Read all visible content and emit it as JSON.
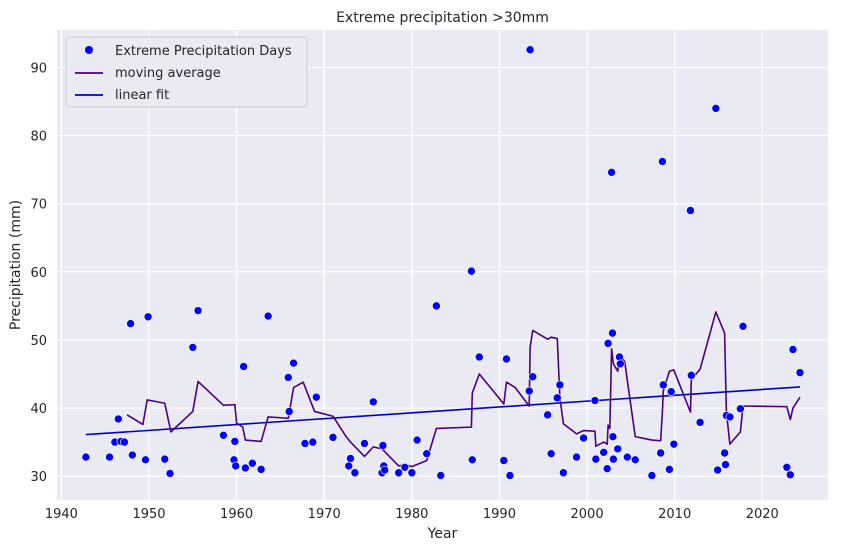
{
  "chart_data": {
    "type": "scatter",
    "title": "Extreme precipitation >30mm",
    "xlabel": "Year",
    "ylabel": "Precipitation (mm)",
    "xlim": [
      1939.5,
      2027.5
    ],
    "ylim": [
      26.5,
      95.5
    ],
    "xticks": [
      1940,
      1950,
      1960,
      1970,
      1980,
      1990,
      2000,
      2010,
      2020
    ],
    "yticks": [
      30,
      40,
      50,
      60,
      70,
      80,
      90
    ],
    "grid": true,
    "legend_position": "top-left",
    "colors": {
      "background": "#eaeaf2",
      "grid": "#ffffff",
      "points": "#0000ff",
      "moving_average": "#4b0082",
      "linear_fit": "#0000cd"
    },
    "legend": [
      "Extreme Precipitation Days",
      "moving average",
      "linear fit"
    ],
    "series": [
      {
        "name": "Extreme Precipitation Days",
        "type": "scatter",
        "points": [
          [
            1942.8,
            32.8
          ],
          [
            1945.5,
            32.8
          ],
          [
            1946.1,
            35.0
          ],
          [
            1946.5,
            38.4
          ],
          [
            1946.8,
            35.1
          ],
          [
            1947.2,
            35.0
          ],
          [
            1947.9,
            52.4
          ],
          [
            1948.1,
            33.1
          ],
          [
            1949.6,
            32.4
          ],
          [
            1949.9,
            53.4
          ],
          [
            1951.8,
            32.5
          ],
          [
            1952.4,
            30.4
          ],
          [
            1955.0,
            48.9
          ],
          [
            1955.6,
            54.3
          ],
          [
            1958.5,
            36.0
          ],
          [
            1959.7,
            32.4
          ],
          [
            1959.8,
            35.1
          ],
          [
            1959.9,
            31.5
          ],
          [
            1960.8,
            46.1
          ],
          [
            1961.0,
            31.2
          ],
          [
            1961.8,
            31.9
          ],
          [
            1962.8,
            31.0
          ],
          [
            1963.6,
            53.5
          ],
          [
            1965.9,
            44.5
          ],
          [
            1966.0,
            39.5
          ],
          [
            1966.5,
            46.6
          ],
          [
            1967.8,
            34.8
          ],
          [
            1968.7,
            35.0
          ],
          [
            1969.1,
            41.6
          ],
          [
            1971.0,
            35.7
          ],
          [
            1972.8,
            31.5
          ],
          [
            1973.0,
            32.6
          ],
          [
            1973.5,
            30.5
          ],
          [
            1974.6,
            34.8
          ],
          [
            1975.6,
            40.9
          ],
          [
            1976.6,
            30.5
          ],
          [
            1976.7,
            34.5
          ],
          [
            1976.8,
            31.5
          ],
          [
            1976.9,
            30.9
          ],
          [
            1978.5,
            30.5
          ],
          [
            1979.2,
            31.3
          ],
          [
            1980.0,
            30.5
          ],
          [
            1980.6,
            35.3
          ],
          [
            1981.7,
            33.3
          ],
          [
            1982.8,
            55.0
          ],
          [
            1983.3,
            30.1
          ],
          [
            1986.8,
            60.1
          ],
          [
            1986.9,
            32.4
          ],
          [
            1987.7,
            47.5
          ],
          [
            1990.5,
            32.3
          ],
          [
            1990.8,
            47.2
          ],
          [
            1991.2,
            30.1
          ],
          [
            1993.4,
            42.5
          ],
          [
            1993.5,
            92.6
          ],
          [
            1993.8,
            44.6
          ],
          [
            1995.5,
            39.0
          ],
          [
            1995.9,
            33.3
          ],
          [
            1996.6,
            41.5
          ],
          [
            1996.9,
            43.4
          ],
          [
            1997.3,
            30.5
          ],
          [
            1998.8,
            32.8
          ],
          [
            1999.6,
            35.6
          ],
          [
            2000.9,
            41.1
          ],
          [
            2001.0,
            32.5
          ],
          [
            2001.9,
            33.5
          ],
          [
            2002.3,
            31.1
          ],
          [
            2002.4,
            49.5
          ],
          [
            2002.8,
            74.6
          ],
          [
            2002.9,
            51.0
          ],
          [
            2002.95,
            35.8
          ],
          [
            2003.0,
            32.5
          ],
          [
            2003.5,
            34.0
          ],
          [
            2003.7,
            47.5
          ],
          [
            2003.8,
            46.5
          ],
          [
            2004.6,
            32.8
          ],
          [
            2005.5,
            32.4
          ],
          [
            2007.4,
            30.1
          ],
          [
            2008.4,
            33.4
          ],
          [
            2008.6,
            76.2
          ],
          [
            2008.7,
            43.4
          ],
          [
            2009.4,
            31.0
          ],
          [
            2009.6,
            42.4
          ],
          [
            2009.9,
            34.7
          ],
          [
            2011.8,
            69.0
          ],
          [
            2011.9,
            44.8
          ],
          [
            2012.9,
            37.9
          ],
          [
            2014.7,
            84.0
          ],
          [
            2014.9,
            30.9
          ],
          [
            2015.7,
            33.4
          ],
          [
            2015.8,
            31.7
          ],
          [
            2015.9,
            38.9
          ],
          [
            2016.3,
            38.7
          ],
          [
            2017.5,
            39.9
          ],
          [
            2017.8,
            52.0
          ],
          [
            2022.8,
            31.3
          ],
          [
            2023.2,
            30.2
          ],
          [
            2023.5,
            48.6
          ],
          [
            2024.3,
            45.2
          ]
        ]
      },
      {
        "name": "moving average",
        "type": "line",
        "points": [
          [
            1947.5,
            39.0
          ],
          [
            1949.3,
            37.6
          ],
          [
            1949.8,
            41.2
          ],
          [
            1951.8,
            40.7
          ],
          [
            1952.5,
            36.5
          ],
          [
            1955.0,
            39.5
          ],
          [
            1955.6,
            43.9
          ],
          [
            1958.5,
            40.4
          ],
          [
            1959.8,
            40.5
          ],
          [
            1960.0,
            37.8
          ],
          [
            1960.7,
            37.2
          ],
          [
            1961.0,
            35.3
          ],
          [
            1962.8,
            35.1
          ],
          [
            1963.6,
            38.7
          ],
          [
            1965.9,
            38.5
          ],
          [
            1966.5,
            43.0
          ],
          [
            1967.6,
            43.8
          ],
          [
            1968.9,
            39.5
          ],
          [
            1971.0,
            38.8
          ],
          [
            1972.5,
            35.8
          ],
          [
            1973.0,
            35.0
          ],
          [
            1974.6,
            32.9
          ],
          [
            1975.6,
            34.3
          ],
          [
            1976.6,
            34.0
          ],
          [
            1978.5,
            31.5
          ],
          [
            1979.2,
            31.7
          ],
          [
            1980.0,
            31.4
          ],
          [
            1981.7,
            32.3
          ],
          [
            1982.8,
            37.0
          ],
          [
            1986.8,
            37.2
          ],
          [
            1986.9,
            42.2
          ],
          [
            1987.7,
            45.0
          ],
          [
            1990.5,
            40.6
          ],
          [
            1990.8,
            43.8
          ],
          [
            1991.8,
            43.0
          ],
          [
            1993.4,
            40.3
          ],
          [
            1993.5,
            48.9
          ],
          [
            1993.8,
            51.4
          ],
          [
            1995.5,
            50.1
          ],
          [
            1995.9,
            50.4
          ],
          [
            1996.6,
            50.2
          ],
          [
            1996.9,
            41.5
          ],
          [
            1997.3,
            37.7
          ],
          [
            1998.8,
            36.2
          ],
          [
            1999.6,
            36.7
          ],
          [
            2000.9,
            36.6
          ],
          [
            2001.0,
            34.4
          ],
          [
            2001.9,
            35.0
          ],
          [
            2002.3,
            34.7
          ],
          [
            2002.4,
            37.5
          ],
          [
            2002.6,
            37.0
          ],
          [
            2002.8,
            48.7
          ],
          [
            2003.0,
            46.5
          ],
          [
            2003.5,
            45.4
          ],
          [
            2003.7,
            47.8
          ],
          [
            2004.3,
            46.8
          ],
          [
            2004.6,
            44.0
          ],
          [
            2005.5,
            35.8
          ],
          [
            2007.4,
            35.3
          ],
          [
            2008.4,
            35.2
          ],
          [
            2008.6,
            39.5
          ],
          [
            2008.7,
            42.5
          ],
          [
            2009.4,
            45.4
          ],
          [
            2009.9,
            45.6
          ],
          [
            2011.8,
            39.4
          ],
          [
            2011.9,
            44.2
          ],
          [
            2012.9,
            45.7
          ],
          [
            2014.7,
            54.1
          ],
          [
            2015.7,
            51.0
          ],
          [
            2015.9,
            39.5
          ],
          [
            2016.3,
            34.7
          ],
          [
            2017.5,
            36.5
          ],
          [
            2017.8,
            40.3
          ],
          [
            2022.8,
            40.2
          ],
          [
            2023.2,
            38.3
          ],
          [
            2023.5,
            40.0
          ],
          [
            2024.3,
            41.6
          ]
        ]
      },
      {
        "name": "linear fit",
        "type": "line",
        "points": [
          [
            1942.8,
            36.1
          ],
          [
            2024.3,
            43.1
          ]
        ]
      }
    ]
  }
}
